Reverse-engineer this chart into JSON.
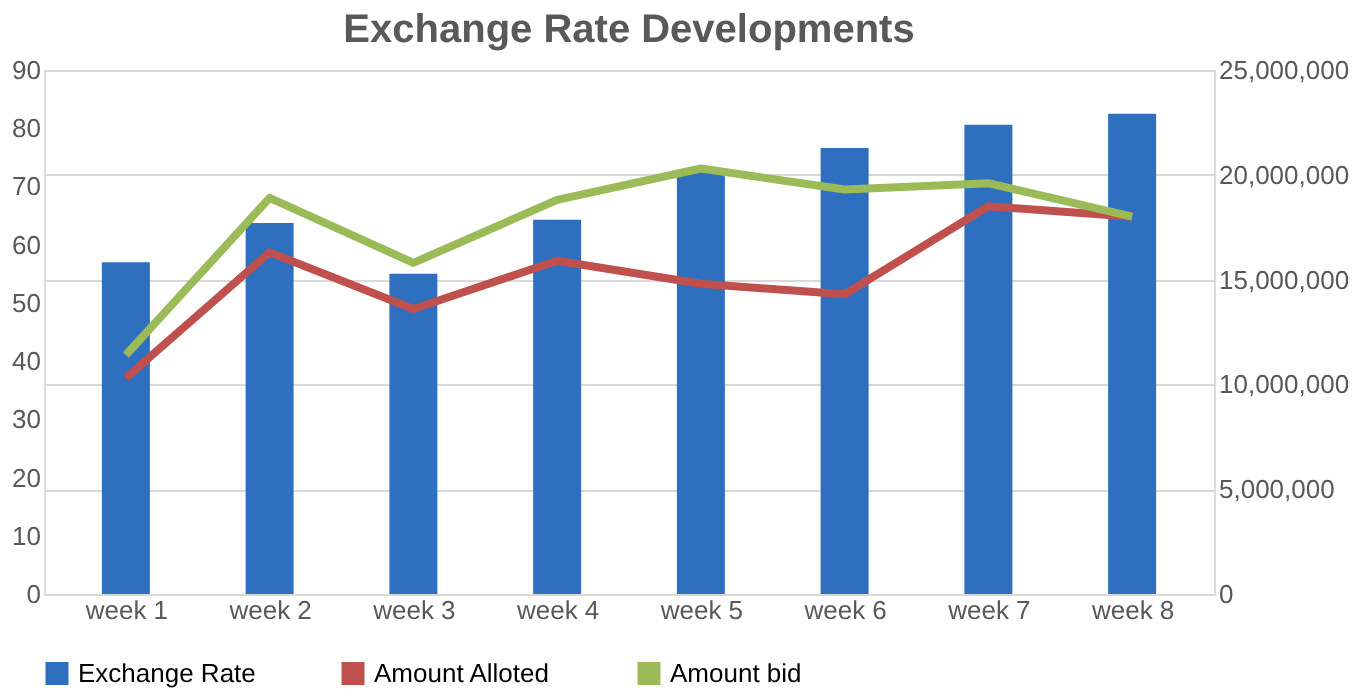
{
  "chart_data": {
    "type": "bar",
    "title": "Exchange Rate Developments",
    "categories": [
      "week 1",
      "week 2",
      "week 3",
      "week 4",
      "week 5",
      "week 6",
      "week 7",
      "week 8"
    ],
    "series": [
      {
        "name": "Exchange Rate",
        "color": "#2e6fc0",
        "values": [
          57,
          63.7,
          55,
          64.3,
          72.5,
          76.6,
          80.6,
          82.5
        ]
      },
      {
        "name": "Amount Alloted",
        "type": "line",
        "axis": "y2",
        "color": "#c0504d",
        "values": [
          10300000,
          16300000,
          13600000,
          15900000,
          14800000,
          14300000,
          18500000,
          18000000
        ]
      },
      {
        "name": "Amount bid",
        "type": "line",
        "axis": "y2",
        "color": "#9bbb59",
        "values": [
          11400000,
          18900000,
          15800000,
          18800000,
          20300000,
          19300000,
          19600000,
          18000000
        ]
      }
    ],
    "ylim": [
      0,
      90
    ],
    "yticks": [
      0,
      10,
      20,
      30,
      40,
      50,
      60,
      70,
      80,
      90
    ],
    "y2lim": [
      0,
      25000000
    ],
    "y2ticks": [
      0,
      {
        "value": 5000000,
        "label": "5,000,000"
      },
      {
        "value": 10000000,
        "label": "10,000,000"
      },
      {
        "value": 15000000,
        "label": "15,000,000"
      },
      {
        "value": 20000000,
        "label": "20,000,000"
      },
      {
        "value": 25000000,
        "label": "25,000,000"
      }
    ],
    "grid": true,
    "legend": "bottom",
    "marker": "none",
    "line_style": "solid"
  }
}
